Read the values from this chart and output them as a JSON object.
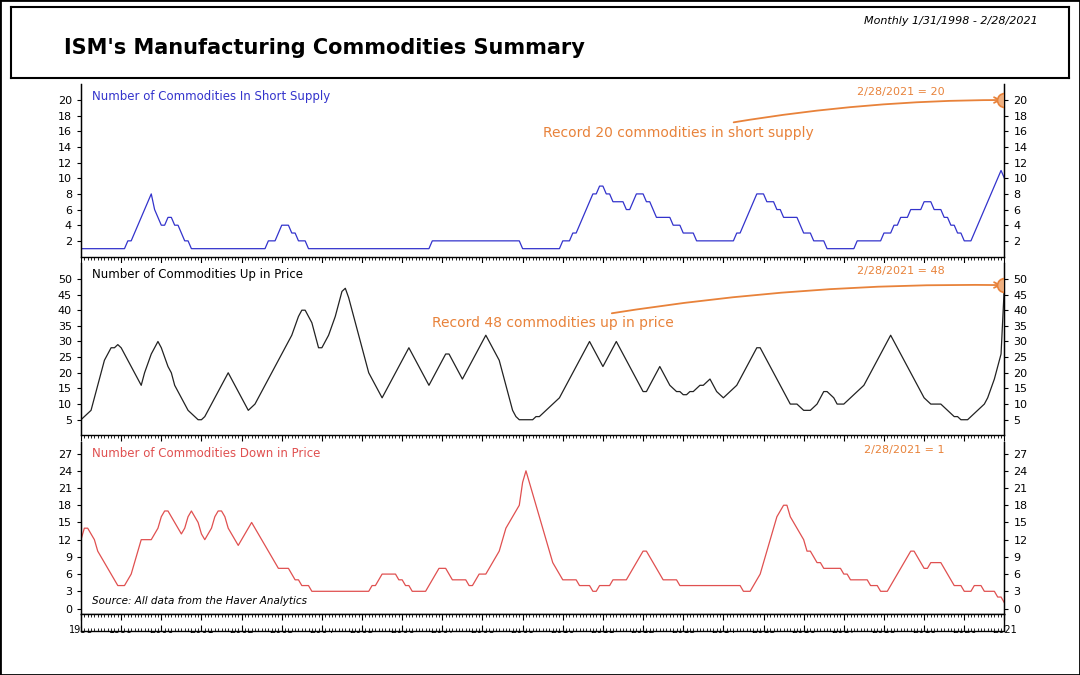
{
  "title": "ISM's Manufacturing Commodities Summary",
  "date_range": "Monthly 1/31/1998 - 2/28/2021",
  "source": "Source: All data from the Haver Analytics",
  "annotation_color": "#e8823a",
  "panel1": {
    "label": "Number of Commodities In Short Supply",
    "color": "#3333cc",
    "ylim": [
      0,
      22
    ],
    "yticks": [
      2,
      4,
      6,
      8,
      10,
      12,
      14,
      16,
      18,
      20
    ],
    "last_label": "2/28/2021 = 20",
    "annotation": "Record 20 commodities in short supply"
  },
  "panel2": {
    "label": "Number of Commodities Up in Price",
    "color": "#222222",
    "ylim": [
      0,
      55
    ],
    "yticks": [
      5,
      10,
      15,
      20,
      25,
      30,
      35,
      40,
      45,
      50
    ],
    "last_label": "2/28/2021 = 48",
    "annotation": "Record 48 commodities up in price"
  },
  "panel3": {
    "label": "Number of Commodities Down in Price",
    "color": "#e05050",
    "ylim": [
      -1,
      29
    ],
    "yticks": [
      0,
      3,
      6,
      9,
      12,
      15,
      18,
      21,
      24,
      27
    ],
    "last_label": "2/28/2021 = 1"
  },
  "n_months": 277
}
